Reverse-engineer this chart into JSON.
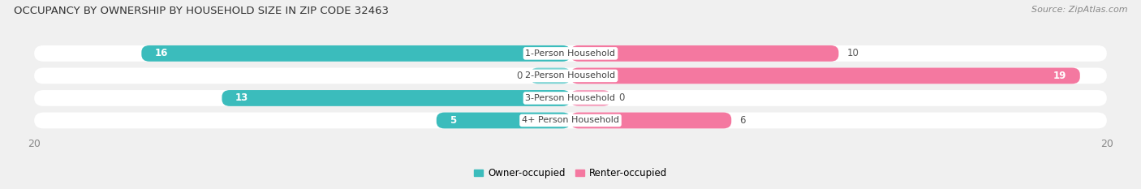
{
  "title": "OCCUPANCY BY OWNERSHIP BY HOUSEHOLD SIZE IN ZIP CODE 32463",
  "source": "Source: ZipAtlas.com",
  "categories": [
    "1-Person Household",
    "2-Person Household",
    "3-Person Household",
    "4+ Person Household"
  ],
  "owner_values": [
    16,
    0,
    13,
    5
  ],
  "renter_values": [
    10,
    19,
    0,
    6
  ],
  "owner_color": "#3BBCBC",
  "owner_color_light": "#7DD4D4",
  "renter_color": "#F478A0",
  "renter_color_light": "#F4A0BE",
  "owner_label": "Owner-occupied",
  "renter_label": "Renter-occupied",
  "xlim": 20,
  "bar_height": 0.72,
  "background_color": "#f0f0f0",
  "row_bg_color": "#e8e8e8",
  "title_fontsize": 9.5,
  "source_fontsize": 8,
  "label_fontsize": 8.5,
  "category_fontsize": 8,
  "tick_fontsize": 9,
  "legend_fontsize": 8.5
}
